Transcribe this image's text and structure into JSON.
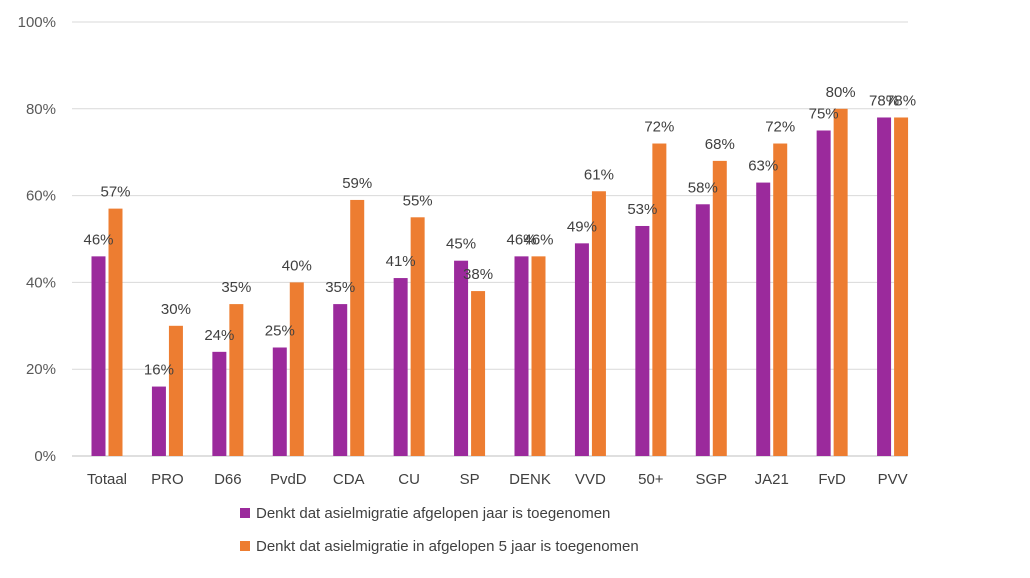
{
  "chart_data": {
    "type": "bar",
    "categories": [
      "Totaal",
      "PRO",
      "D66",
      "PvdD",
      "CDA",
      "CU",
      "SP",
      "DENK",
      "VVD",
      "50+",
      "SGP",
      "JA21",
      "FvD",
      "PVV"
    ],
    "series": [
      {
        "name": "Denkt dat asielmigratie afgelopen jaar is toegenomen",
        "color": "#9b2a9c",
        "values": [
          46,
          16,
          24,
          25,
          35,
          41,
          45,
          46,
          49,
          53,
          58,
          63,
          75,
          78
        ],
        "labels": [
          "46%",
          "16%",
          "24%",
          "25%",
          "35%",
          "41%",
          "45%",
          "46%",
          "49%",
          "53%",
          "58%",
          "63%",
          "75%",
          "78%"
        ]
      },
      {
        "name": "Denkt dat asielmigratie in afgelopen 5 jaar is toegenomen",
        "color": "#ed7d31",
        "values": [
          57,
          30,
          35,
          40,
          59,
          55,
          38,
          46,
          61,
          72,
          68,
          72,
          80,
          78
        ],
        "labels": [
          "57%",
          "30%",
          "35%",
          "40%",
          "59%",
          "55%",
          "38%",
          "46%",
          "61%",
          "72%",
          "68%",
          "72%",
          "80%",
          "78%"
        ]
      }
    ],
    "yticks": [
      0,
      20,
      40,
      60,
      80,
      100
    ],
    "ytick_labels": [
      "0%",
      "20%",
      "40%",
      "60%",
      "80%",
      "100%"
    ],
    "ylim": [
      0,
      100
    ],
    "grid": true,
    "legend_position": "bottom",
    "title": "",
    "xlabel": "",
    "ylabel": ""
  }
}
